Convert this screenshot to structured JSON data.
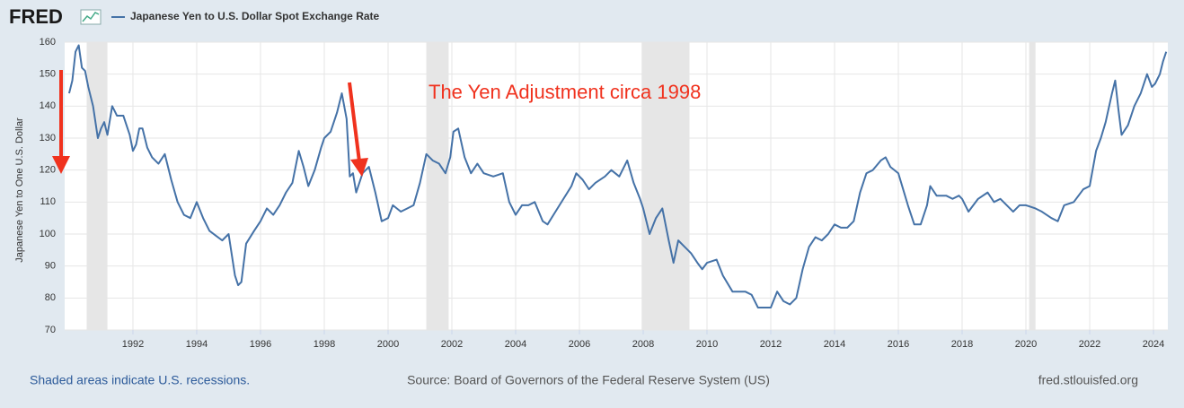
{
  "chart_data": {
    "type": "line",
    "logo": "FRED",
    "title": "Japanese Yen to U.S. Dollar Spot Exchange Rate",
    "y_label": "Japanese Yen to One U.S. Dollar",
    "annotation": "The Yen Adjustment circa 1998",
    "note": "Shaded areas indicate U.S. recessions.",
    "source": "Source: Board of Governors of the Federal Reserve System (US)",
    "site": "fred.stlouisfed.org",
    "grid": true,
    "xlim": [
      1989.86,
      2024.45
    ],
    "xticks": [
      1992,
      1994,
      1996,
      1998,
      2000,
      2002,
      2004,
      2006,
      2008,
      2010,
      2012,
      2014,
      2016,
      2018,
      2020,
      2022,
      2024
    ],
    "ylim": [
      70,
      160
    ],
    "yticks": [
      70,
      80,
      90,
      100,
      110,
      120,
      130,
      140,
      150,
      160
    ],
    "recessions": [
      [
        1990.55,
        1991.2
      ],
      [
        2001.2,
        2001.9
      ],
      [
        2007.95,
        2009.45
      ],
      [
        2020.1,
        2020.3
      ]
    ],
    "x": [
      1990.0,
      1990.1,
      1990.2,
      1990.3,
      1990.4,
      1990.5,
      1990.6,
      1990.75,
      1990.9,
      1991.0,
      1991.1,
      1991.2,
      1991.35,
      1991.5,
      1991.7,
      1991.9,
      1992.0,
      1992.1,
      1992.2,
      1992.3,
      1992.45,
      1992.6,
      1992.8,
      1993.0,
      1993.2,
      1993.4,
      1993.6,
      1993.8,
      1994.0,
      1994.2,
      1994.4,
      1994.6,
      1994.8,
      1995.0,
      1995.2,
      1995.3,
      1995.4,
      1995.55,
      1995.8,
      1996.0,
      1996.2,
      1996.4,
      1996.6,
      1996.8,
      1997.0,
      1997.2,
      1997.35,
      1997.5,
      1997.7,
      1997.9,
      1998.0,
      1998.2,
      1998.4,
      1998.55,
      1998.7,
      1998.8,
      1998.9,
      1999.0,
      1999.2,
      1999.4,
      1999.6,
      1999.8,
      2000.0,
      2000.15,
      2000.4,
      2000.6,
      2000.8,
      2001.0,
      2001.2,
      2001.4,
      2001.6,
      2001.8,
      2001.95,
      2002.05,
      2002.2,
      2002.4,
      2002.6,
      2002.8,
      2003.0,
      2003.3,
      2003.6,
      2003.8,
      2004.0,
      2004.2,
      2004.4,
      2004.6,
      2004.85,
      2005.0,
      2005.25,
      2005.5,
      2005.75,
      2005.9,
      2006.1,
      2006.3,
      2006.5,
      2006.8,
      2007.0,
      2007.25,
      2007.5,
      2007.7,
      2007.9,
      2008.0,
      2008.2,
      2008.4,
      2008.6,
      2008.8,
      2008.95,
      2009.1,
      2009.3,
      2009.5,
      2009.7,
      2009.85,
      2010.0,
      2010.3,
      2010.5,
      2010.8,
      2011.0,
      2011.2,
      2011.4,
      2011.6,
      2011.8,
      2012.0,
      2012.2,
      2012.4,
      2012.6,
      2012.8,
      2013.0,
      2013.2,
      2013.4,
      2013.6,
      2013.8,
      2014.0,
      2014.2,
      2014.4,
      2014.6,
      2014.8,
      2015.0,
      2015.2,
      2015.45,
      2015.6,
      2015.75,
      2016.0,
      2016.15,
      2016.3,
      2016.5,
      2016.7,
      2016.9,
      2017.0,
      2017.2,
      2017.5,
      2017.7,
      2017.9,
      2018.0,
      2018.2,
      2018.5,
      2018.8,
      2019.0,
      2019.2,
      2019.4,
      2019.6,
      2019.8,
      2020.0,
      2020.3,
      2020.5,
      2020.8,
      2021.0,
      2021.2,
      2021.5,
      2021.8,
      2022.0,
      2022.2,
      2022.35,
      2022.5,
      2022.7,
      2022.8,
      2022.9,
      2023.0,
      2023.2,
      2023.4,
      2023.6,
      2023.8,
      2023.95,
      2024.05,
      2024.2,
      2024.3,
      2024.4
    ],
    "series": [
      {
        "name": "Japanese Yen to U.S. Dollar Spot Exchange Rate",
        "color": "#4572a7",
        "values": [
          144,
          148,
          157,
          159,
          152,
          151,
          146,
          140,
          130,
          133,
          135,
          131,
          140,
          137,
          137,
          131,
          126,
          128,
          133,
          133,
          127,
          124,
          122,
          125,
          117,
          110,
          106,
          105,
          110,
          105,
          101,
          99.5,
          98,
          100,
          87,
          84,
          85,
          97,
          101,
          104,
          108,
          106,
          109,
          113,
          116,
          126,
          121,
          115,
          120,
          127,
          130,
          132,
          138,
          144,
          136,
          118,
          119,
          113,
          119,
          121,
          113,
          104,
          105,
          109,
          107,
          108,
          109,
          116,
          125,
          123,
          122,
          119,
          124,
          132,
          133,
          124,
          119,
          122,
          119,
          118,
          119,
          110,
          106,
          109,
          109,
          110,
          104,
          103,
          107,
          111,
          115,
          119,
          117,
          114,
          116,
          118,
          120,
          118,
          123,
          116,
          111,
          108,
          100,
          105,
          108,
          98,
          91,
          98,
          96,
          94,
          91,
          89,
          91,
          92,
          87,
          82,
          82,
          82,
          81,
          77,
          77,
          77,
          82,
          79,
          78,
          80,
          89,
          96,
          99,
          98,
          100,
          103,
          102,
          102,
          104,
          113,
          119,
          120,
          123,
          124,
          121,
          119,
          114,
          109,
          103,
          103,
          109,
          115,
          112,
          112,
          111,
          112,
          111,
          107,
          111,
          113,
          110,
          111,
          109,
          107,
          109,
          109,
          108,
          107,
          105,
          104,
          109,
          110,
          114,
          115,
          126,
          130,
          135,
          144,
          148,
          139,
          131,
          134,
          140,
          144,
          150,
          146,
          147,
          150,
          154,
          157
        ]
      }
    ]
  }
}
